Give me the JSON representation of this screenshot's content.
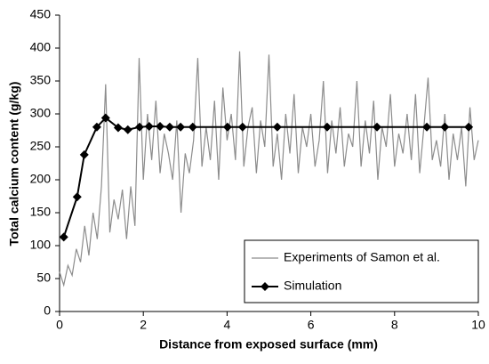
{
  "chart_data": {
    "type": "line",
    "xlabel": "Distance from exposed surface (mm)",
    "ylabel": "Total calcium content (g/kg)",
    "xlim": [
      0,
      10
    ],
    "xticks": [
      0,
      2,
      4,
      6,
      8,
      10
    ],
    "ylim": [
      0,
      450
    ],
    "yticks": [
      0,
      50,
      100,
      150,
      200,
      250,
      300,
      350,
      400,
      450
    ],
    "grid": false,
    "legend": "lower right",
    "series": [
      {
        "name": "Experiments of Samon et al.",
        "color": "#8c8c8c",
        "marker": "none",
        "x": [
          0,
          0.1,
          0.2,
          0.3,
          0.4,
          0.5,
          0.6,
          0.7,
          0.8,
          0.9,
          1,
          1.1,
          1.2,
          1.3,
          1.4,
          1.5,
          1.6,
          1.7,
          1.8,
          1.9,
          2,
          2.1,
          2.2,
          2.3,
          2.4,
          2.5,
          2.6,
          2.7,
          2.8,
          2.9,
          3,
          3.1,
          3.2,
          3.3,
          3.4,
          3.5,
          3.6,
          3.7,
          3.8,
          3.9,
          4,
          4.1,
          4.2,
          4.3,
          4.4,
          4.5,
          4.6,
          4.7,
          4.8,
          4.9,
          5,
          5.1,
          5.2,
          5.3,
          5.4,
          5.5,
          5.6,
          5.7,
          5.8,
          5.9,
          6,
          6.1,
          6.2,
          6.3,
          6.4,
          6.5,
          6.6,
          6.7,
          6.8,
          6.9,
          7,
          7.1,
          7.2,
          7.3,
          7.4,
          7.5,
          7.6,
          7.7,
          7.8,
          7.9,
          8,
          8.1,
          8.2,
          8.3,
          8.4,
          8.5,
          8.6,
          8.7,
          8.8,
          8.9,
          9,
          9.1,
          9.2,
          9.3,
          9.4,
          9.5,
          9.6,
          9.7,
          9.8,
          9.9,
          10
        ],
        "values": [
          60,
          40,
          70,
          55,
          95,
          75,
          130,
          85,
          150,
          110,
          190,
          345,
          120,
          170,
          140,
          185,
          110,
          190,
          130,
          385,
          200,
          300,
          230,
          320,
          210,
          270,
          240,
          200,
          290,
          150,
          240,
          210,
          260,
          385,
          220,
          280,
          230,
          320,
          200,
          340,
          260,
          300,
          230,
          395,
          220,
          280,
          310,
          210,
          290,
          250,
          390,
          220,
          270,
          200,
          300,
          240,
          330,
          210,
          280,
          250,
          300,
          220,
          260,
          350,
          210,
          290,
          240,
          310,
          220,
          270,
          250,
          350,
          220,
          290,
          240,
          320,
          200,
          280,
          250,
          330,
          220,
          270,
          240,
          300,
          230,
          330,
          210,
          280,
          355,
          230,
          260,
          220,
          300,
          200,
          270,
          230,
          280,
          190,
          310,
          230,
          260
        ]
      },
      {
        "name": "Simulation",
        "color": "#000000",
        "marker": "diamond",
        "x": [
          0.1,
          0.42,
          0.59,
          0.89,
          1.1,
          1.4,
          1.63,
          1.91,
          2.14,
          2.4,
          2.63,
          2.89,
          3.18,
          4.01,
          4.37,
          5.2,
          6.39,
          7.58,
          8.77,
          9.2,
          9.77
        ],
        "values": [
          113,
          174,
          238,
          280,
          294,
          279,
          276,
          280,
          281,
          281,
          280,
          280,
          280,
          280,
          280,
          280,
          280,
          280,
          280,
          280,
          280
        ]
      }
    ]
  }
}
